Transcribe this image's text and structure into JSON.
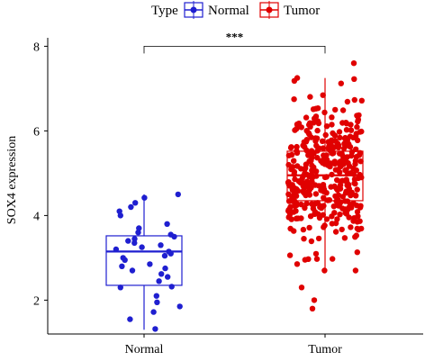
{
  "chart_data": {
    "type": "box",
    "legend": {
      "title": "Type",
      "placement": "top",
      "entries": [
        {
          "label": "Normal",
          "color": "#1f1fd0"
        },
        {
          "label": "Tumor",
          "color": "#e00000"
        }
      ]
    },
    "ylabel": "SOX4 expression",
    "xlabel": "",
    "ylim": [
      1.2,
      8.2
    ],
    "yticks": [
      2,
      4,
      6,
      8
    ],
    "categories": [
      "Normal",
      "Tumor"
    ],
    "significance": {
      "label": "***",
      "between": [
        "Normal",
        "Tumor"
      ],
      "y": 8.0
    },
    "series": [
      {
        "name": "Normal",
        "color": "#1f1fd0",
        "box": {
          "min": 1.3,
          "q1": 2.35,
          "median": 3.15,
          "q3": 3.52,
          "max": 4.5
        },
        "points": [
          1.32,
          1.55,
          1.72,
          1.85,
          1.95,
          2.1,
          2.3,
          2.32,
          2.45,
          2.55,
          2.62,
          2.7,
          2.75,
          2.8,
          2.85,
          2.95,
          3.0,
          3.05,
          3.1,
          3.15,
          3.2,
          3.25,
          3.3,
          3.35,
          3.4,
          3.45,
          3.5,
          3.55,
          3.6,
          3.7,
          3.8,
          4.0,
          4.1,
          4.2,
          4.3,
          4.42,
          4.5
        ]
      },
      {
        "name": "Tumor",
        "color": "#e00000",
        "box": {
          "min": 2.7,
          "q1": 4.35,
          "median": 4.95,
          "q3": 5.52,
          "max": 7.25
        },
        "outliers": [
          7.6,
          2.3,
          2.0,
          1.8
        ],
        "n_points": 380
      }
    ]
  }
}
